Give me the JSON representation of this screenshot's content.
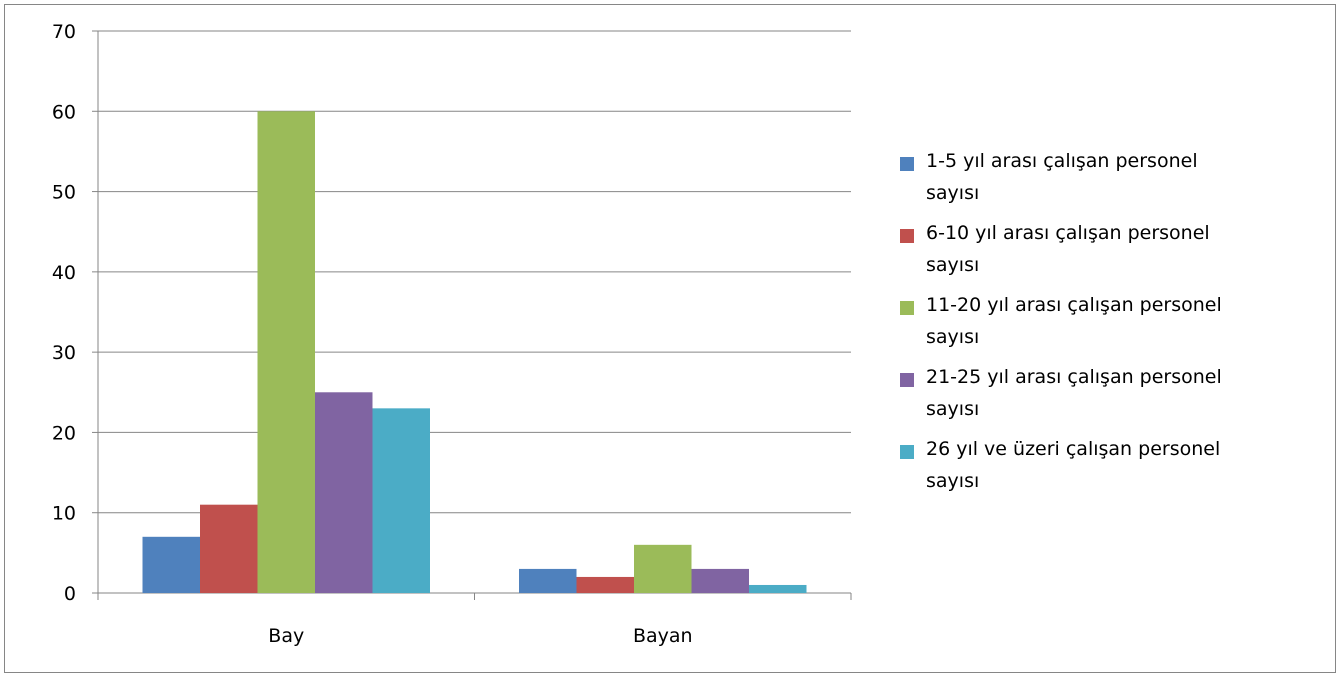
{
  "chart_data": {
    "type": "bar",
    "title": "",
    "xlabel": "",
    "ylabel": "",
    "ylim": [
      0,
      70
    ],
    "yticks": [
      0,
      10,
      20,
      30,
      40,
      50,
      60,
      70
    ],
    "grid": true,
    "legend_position": "right",
    "categories": [
      "Bay",
      "Bayan"
    ],
    "series": [
      {
        "name": "1-5 yıl arası çalışan personel sayısı",
        "values": [
          7,
          3
        ],
        "color": "#4F81BD"
      },
      {
        "name": "6-10 yıl arası çalışan personel sayısı",
        "values": [
          11,
          2
        ],
        "color": "#C0504D"
      },
      {
        "name": "11-20 yıl arası çalışan personel sayısı",
        "values": [
          60,
          6
        ],
        "color": "#9BBB59"
      },
      {
        "name": "21-25 yıl arası çalışan personel sayısı",
        "values": [
          25,
          3
        ],
        "color": "#8064A2"
      },
      {
        "name": "26 yıl ve üzeri çalışan personel sayısı",
        "values": [
          23,
          1
        ],
        "color": "#4BACC6"
      }
    ]
  },
  "legend": {
    "items": [
      "1-5 yıl arası çalışan personel\nsayısı",
      "6-10 yıl arası çalışan personel\nsayısı",
      "11-20 yıl arası çalışan personel\nsayısı",
      "21-25 yıl arası çalışan personel\nsayısı",
      "26 yıl ve üzeri çalışan personel\nsayısı"
    ]
  }
}
